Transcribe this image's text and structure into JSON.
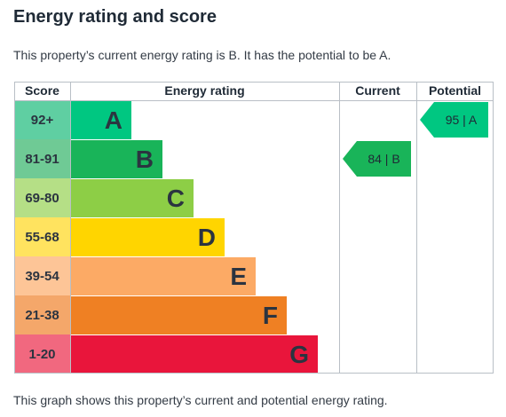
{
  "title": "Energy rating and score",
  "intro": "This property’s current energy rating is B. It has the potential to be A.",
  "footer": "This graph shows this property’s current and potential energy rating.",
  "chart_data": {
    "type": "table",
    "headers": {
      "score": "Score",
      "rating": "Energy rating",
      "current": "Current",
      "potential": "Potential"
    },
    "bands": [
      {
        "letter": "A",
        "range": "92+",
        "color": "#00c781",
        "score_color": "#5fcfa2"
      },
      {
        "letter": "B",
        "range": "81-91",
        "color": "#19b459",
        "score_color": "#6fca95"
      },
      {
        "letter": "C",
        "range": "69-80",
        "color": "#8dce46",
        "score_color": "#b5df86"
      },
      {
        "letter": "D",
        "range": "55-68",
        "color": "#ffd500",
        "score_color": "#ffe35f"
      },
      {
        "letter": "E",
        "range": "39-54",
        "color": "#fcaa65",
        "score_color": "#fdc597"
      },
      {
        "letter": "F",
        "range": "21-38",
        "color": "#ef8023",
        "score_color": "#f4a76a"
      },
      {
        "letter": "G",
        "range": "1-20",
        "color": "#e9153b",
        "score_color": "#f1687f"
      }
    ],
    "current": {
      "value": 84,
      "letter": "B",
      "label": "84 | B",
      "color": "#19b459"
    },
    "potential": {
      "value": 95,
      "letter": "A",
      "label": "95 | A",
      "color": "#00c781"
    },
    "grid_color": "#b9bfc6"
  }
}
